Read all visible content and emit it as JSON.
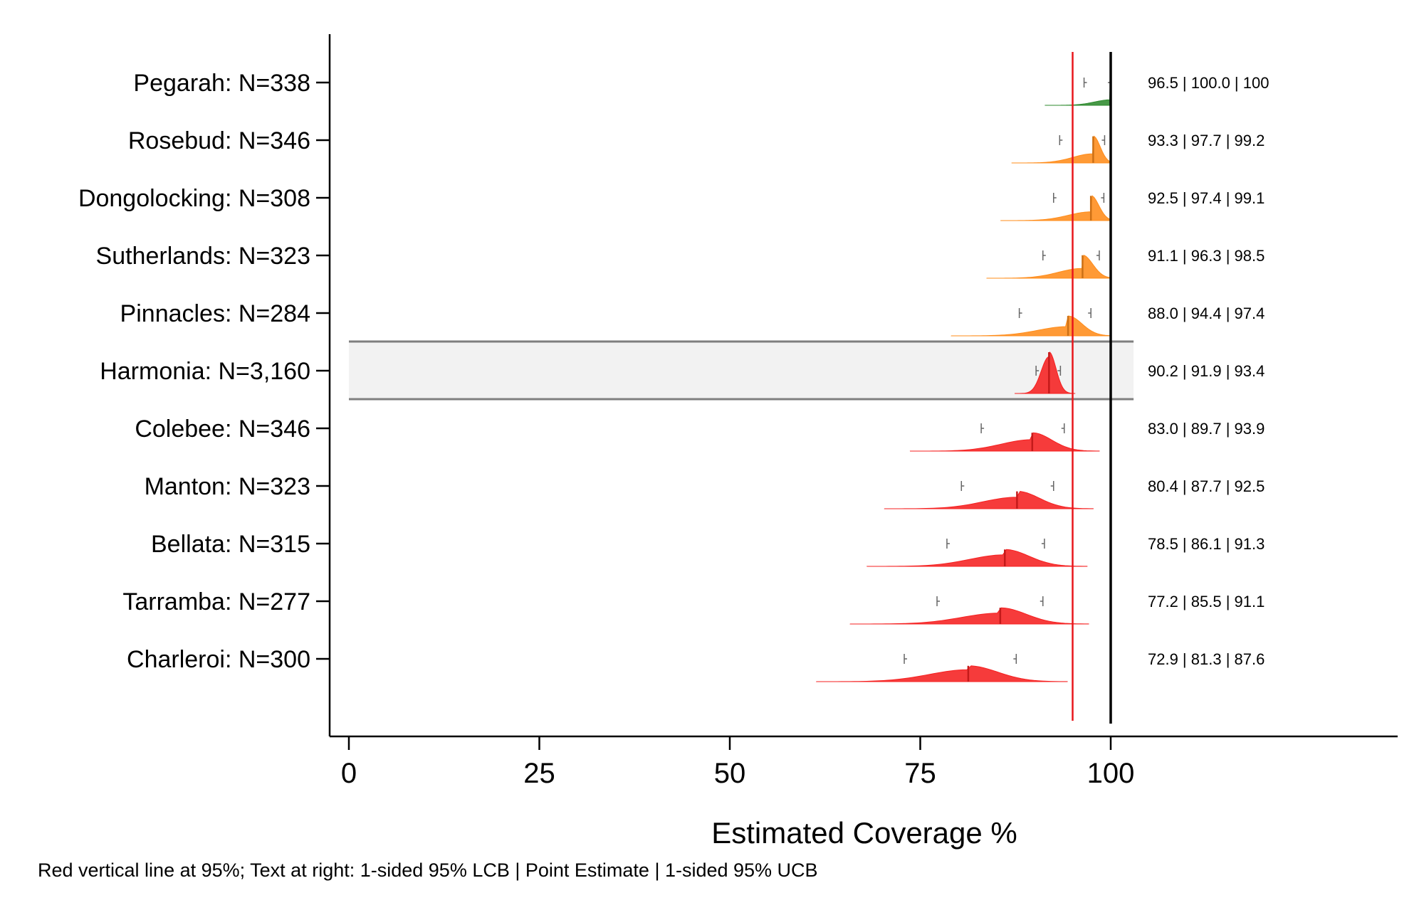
{
  "chart_data": {
    "type": "inchworm",
    "title": "",
    "xlabel": "Estimated Coverage %",
    "ylabel": "",
    "xlim": [
      0,
      100
    ],
    "x_ticks": [
      0,
      25,
      50,
      75,
      100
    ],
    "x_tick_labels": [
      "0",
      "25",
      "50",
      "75",
      "100"
    ],
    "reference_lines": [
      {
        "value": 95,
        "color": "#e8161b"
      },
      {
        "value": 100,
        "color": "#000000"
      }
    ],
    "categories": [
      {
        "label": "Pegarah: N=338",
        "lcb": 96.5,
        "estimate": 100.0,
        "ucb": 100,
        "text": "96.5 | 100.0 | 100",
        "color": "#2d8a2d",
        "highlight": false
      },
      {
        "label": "Rosebud: N=346",
        "lcb": 93.3,
        "estimate": 97.7,
        "ucb": 99.2,
        "text": "93.3 | 97.7 | 99.2",
        "color": "#ff8c1a",
        "highlight": false
      },
      {
        "label": "Dongolocking: N=308",
        "lcb": 92.5,
        "estimate": 97.4,
        "ucb": 99.1,
        "text": "92.5 | 97.4 | 99.1",
        "color": "#ff8c1a",
        "highlight": false
      },
      {
        "label": "Sutherlands: N=323",
        "lcb": 91.1,
        "estimate": 96.3,
        "ucb": 98.5,
        "text": "91.1 | 96.3 | 98.5",
        "color": "#ff8c1a",
        "highlight": false
      },
      {
        "label": "Pinnacles: N=284",
        "lcb": 88.0,
        "estimate": 94.4,
        "ucb": 97.4,
        "text": "88.0 | 94.4 | 97.4",
        "color": "#ff8c1a",
        "highlight": false
      },
      {
        "label": "Harmonia: N=3,160",
        "lcb": 90.2,
        "estimate": 91.9,
        "ucb": 93.4,
        "text": "90.2 | 91.9 | 93.4",
        "color": "#f52020",
        "highlight": true
      },
      {
        "label": "Colebee: N=346",
        "lcb": 83.0,
        "estimate": 89.7,
        "ucb": 93.9,
        "text": "83.0 | 89.7 | 93.9",
        "color": "#f52020",
        "highlight": false
      },
      {
        "label": "Manton: N=323",
        "lcb": 80.4,
        "estimate": 87.7,
        "ucb": 92.5,
        "text": "80.4 | 87.7 | 92.5",
        "color": "#f52020",
        "highlight": false
      },
      {
        "label": "Bellata: N=315",
        "lcb": 78.5,
        "estimate": 86.1,
        "ucb": 91.3,
        "text": "78.5 | 86.1 | 91.3",
        "color": "#f52020",
        "highlight": false
      },
      {
        "label": "Tarramba: N=277",
        "lcb": 77.2,
        "estimate": 85.5,
        "ucb": 91.1,
        "text": "77.2 | 85.5 | 91.1",
        "color": "#f52020",
        "highlight": false
      },
      {
        "label": "Charleroi: N=300",
        "lcb": 72.9,
        "estimate": 81.3,
        "ucb": 87.6,
        "text": "72.9 | 81.3 | 87.6",
        "color": "#f52020",
        "highlight": false
      }
    ],
    "highlight_band_color": "#f2f2f2",
    "footnote": "Red vertical line at 95%; Text at right: 1-sided 95% LCB | Point Estimate | 1-sided 95% UCB"
  }
}
